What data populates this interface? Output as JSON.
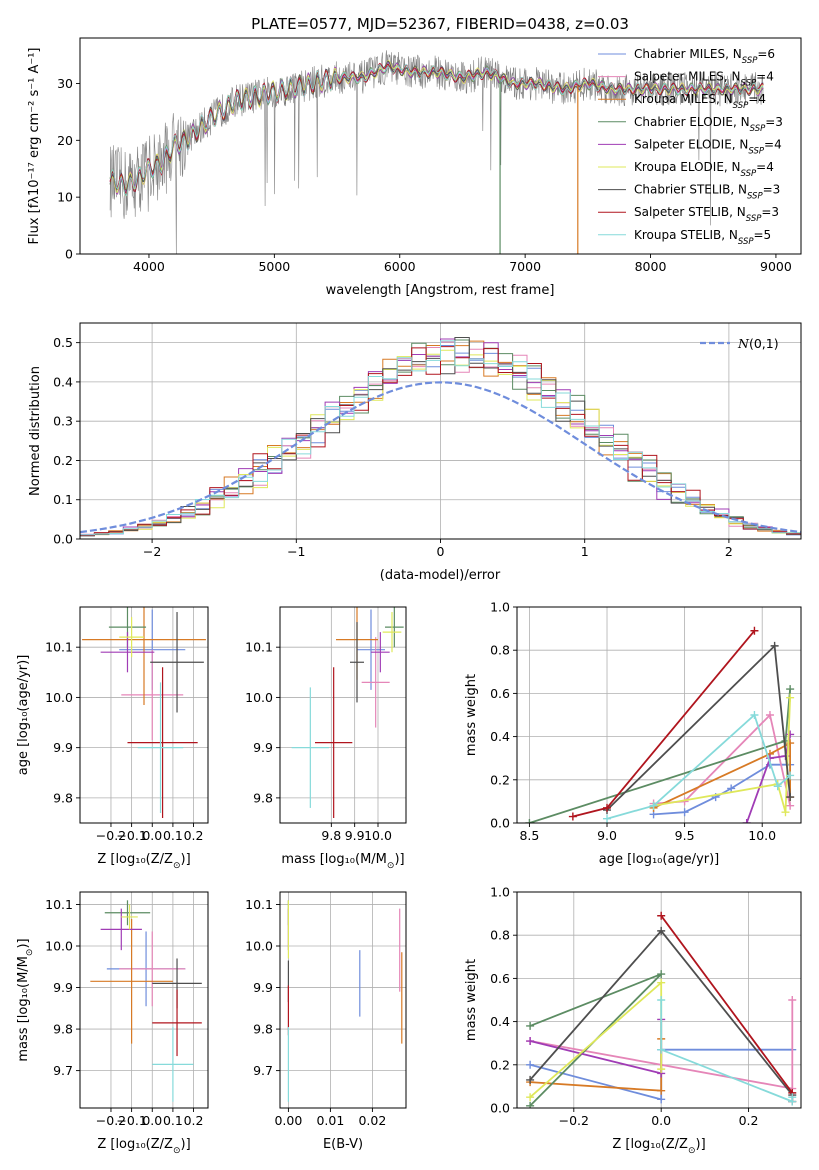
{
  "figure": {
    "title": "PLATE=0577, MJD=52367, FIBERID=0438, z=0.03"
  },
  "colors": [
    "#6f8ddc",
    "#e586b8",
    "#d77a25",
    "#5c8c63",
    "#a03cb5",
    "#dfe85b",
    "#4e4e4e",
    "#b0151e",
    "#86dada"
  ],
  "chart_data": [
    {
      "id": "spectrum",
      "type": "line",
      "title": "PLATE=0577, MJD=52367, FIBERID=0438, z=0.03",
      "xlabel": "wavelength [Angstrom, rest frame]",
      "ylabel": "Flux [f_λ 10^-17 erg cm^-2 s^-1 A^-1]",
      "xlim": [
        3450,
        9200
      ],
      "ylim": [
        0,
        38
      ],
      "xticks": [
        4000,
        5000,
        6000,
        7000,
        8000,
        9000
      ],
      "yticks": [
        0,
        10,
        20,
        30
      ],
      "grid": false,
      "legend_position": "top-right",
      "series": [
        {
          "name": "Chabrier MILES, N_SSP=6"
        },
        {
          "name": "Salpeter MILES, N_SSP=4"
        },
        {
          "name": "Kroupa MILES, N_SSP=4"
        },
        {
          "name": "Chabrier ELODIE, N_SSP=3"
        },
        {
          "name": "Salpeter ELODIE, N_SSP=4"
        },
        {
          "name": "Kroupa ELODIE, N_SSP=4"
        },
        {
          "name": "Chabrier STELIB, N_SSP=3"
        },
        {
          "name": "Salpeter STELIB, N_SSP=3"
        },
        {
          "name": "Kroupa STELIB, N_SSP=5"
        }
      ],
      "continuum": {
        "x": [
          3690,
          3800,
          3900,
          4000,
          4100,
          4200,
          4300,
          4500,
          4700,
          4900,
          5100,
          5300,
          5500,
          5700,
          5900,
          6100,
          6300,
          6500,
          6700,
          6900,
          7100,
          7300,
          7500,
          7700,
          7900,
          8100,
          8300,
          8500,
          8700,
          8900
        ],
        "y": [
          13,
          12,
          13,
          15,
          16,
          19,
          20,
          24,
          27,
          28,
          29,
          30,
          31,
          31,
          33,
          32,
          32,
          31,
          32,
          30,
          30,
          29,
          30,
          29,
          29,
          29,
          29,
          29,
          29,
          29
        ]
      },
      "observed_noise_amplitude": 3.0,
      "dips": [
        {
          "x": 6800,
          "y": 0
        },
        {
          "x": 7420,
          "y": 0
        }
      ]
    },
    {
      "id": "residuals",
      "type": "histogram",
      "xlabel": "(data-model)/error",
      "ylabel": "Normed distribution",
      "xlim": [
        -2.5,
        2.5
      ],
      "ylim": [
        0,
        0.55
      ],
      "xticks": [
        -2,
        -1,
        0,
        1,
        2
      ],
      "yticks": [
        0.0,
        0.1,
        0.2,
        0.3,
        0.4,
        0.5
      ],
      "grid": true,
      "legend_position": "top-right",
      "legend": "N(0,1)",
      "bin_edges": [
        -2.5,
        -2.4,
        -2.3,
        -2.2,
        -2.1,
        -2.0,
        -1.9,
        -1.8,
        -1.7,
        -1.6,
        -1.5,
        -1.4,
        -1.3,
        -1.2,
        -1.1,
        -1.0,
        -0.9,
        -0.8,
        -0.7,
        -0.6,
        -0.5,
        -0.4,
        -0.3,
        -0.2,
        -0.1,
        0.0,
        0.1,
        0.2,
        0.3,
        0.4,
        0.5,
        0.6,
        0.7,
        0.8,
        0.9,
        1.0,
        1.1,
        1.2,
        1.3,
        1.4,
        1.5,
        1.6,
        1.7,
        1.8,
        1.9,
        2.0,
        2.1,
        2.2,
        2.3,
        2.4,
        2.5
      ],
      "reference_counts": [
        0.01,
        0.014,
        0.018,
        0.024,
        0.031,
        0.04,
        0.052,
        0.068,
        0.084,
        0.102,
        0.124,
        0.146,
        0.17,
        0.196,
        0.224,
        0.252,
        0.282,
        0.31,
        0.336,
        0.362,
        0.388,
        0.412,
        0.434,
        0.452,
        0.462,
        0.466,
        0.47,
        0.468,
        0.458,
        0.444,
        0.426,
        0.4,
        0.376,
        0.346,
        0.316,
        0.286,
        0.256,
        0.224,
        0.196,
        0.168,
        0.142,
        0.118,
        0.096,
        0.076,
        0.06,
        0.046,
        0.034,
        0.025,
        0.018,
        0.013
      ]
    },
    {
      "id": "age-vs-Z",
      "type": "errorbar",
      "xlabel": "Z [log10(Z/Z_sun)]",
      "ylabel": "age [log10(age/yr)]",
      "xlim": [
        -0.35,
        0.27
      ],
      "ylim": [
        9.75,
        10.18
      ],
      "xticks": [
        -0.2,
        -0.1,
        0.0,
        0.1,
        0.2
      ],
      "yticks": [
        9.8,
        9.9,
        10.0,
        10.1
      ],
      "grid": true,
      "points": [
        {
          "x": 0.0,
          "xerr": 0.16,
          "y": 10.095,
          "yerr": 0.08
        },
        {
          "x": 0.0,
          "xerr": 0.15,
          "y": 10.005,
          "yerr": 0.09
        },
        {
          "x": -0.04,
          "xerr": 0.3,
          "y": 10.115,
          "yerr": 0.13
        },
        {
          "x": -0.12,
          "xerr": 0.09,
          "y": 10.14,
          "yerr": 0.04
        },
        {
          "x": -0.12,
          "xerr": 0.13,
          "y": 10.09,
          "yerr": 0.04
        },
        {
          "x": -0.1,
          "xerr": 0.06,
          "y": 10.12,
          "yerr": 0.04
        },
        {
          "x": 0.12,
          "xerr": 0.13,
          "y": 10.07,
          "yerr": 0.1
        },
        {
          "x": 0.05,
          "xerr": 0.17,
          "y": 9.91,
          "yerr": 0.15
        },
        {
          "x": 0.04,
          "xerr": 0.11,
          "y": 9.9,
          "yerr": 0.13
        }
      ]
    },
    {
      "id": "age-vs-mass",
      "type": "errorbar",
      "xlabel": "mass [log10(M/M_sun)]",
      "ylabel": "",
      "xlim": [
        9.58,
        10.12
      ],
      "ylim": [
        9.75,
        10.18
      ],
      "xticks": [
        9.8,
        9.9,
        10.0
      ],
      "yticks": [
        9.8,
        9.9,
        10.0,
        10.1
      ],
      "grid": true,
      "points": [
        {
          "x": 9.97,
          "xerr": 0.06,
          "y": 10.095,
          "yerr": 0.08
        },
        {
          "x": 9.99,
          "xerr": 0.06,
          "y": 10.03,
          "yerr": 0.09
        },
        {
          "x": 9.91,
          "xerr": 0.09,
          "y": 10.115,
          "yerr": 0.08
        },
        {
          "x": 10.07,
          "xerr": 0.04,
          "y": 10.14,
          "yerr": 0.04
        },
        {
          "x": 10.01,
          "xerr": 0.04,
          "y": 10.09,
          "yerr": 0.04
        },
        {
          "x": 10.06,
          "xerr": 0.04,
          "y": 10.13,
          "yerr": 0.04
        },
        {
          "x": 9.91,
          "xerr": 0.03,
          "y": 10.07,
          "yerr": 0.08
        },
        {
          "x": 9.81,
          "xerr": 0.08,
          "y": 9.91,
          "yerr": 0.15
        },
        {
          "x": 9.71,
          "xerr": 0.08,
          "y": 9.9,
          "yerr": 0.12
        }
      ]
    },
    {
      "id": "massweight-vs-age",
      "type": "line",
      "xlabel": "age [log10(age/yr)]",
      "ylabel": "mass weight",
      "xlim": [
        8.42,
        10.25
      ],
      "ylim": [
        0,
        1.0
      ],
      "xticks": [
        8.5,
        9.0,
        9.5,
        10.0
      ],
      "yticks": [
        0.0,
        0.2,
        0.4,
        0.6,
        0.8,
        1.0
      ],
      "grid": true,
      "series": [
        {
          "x": [
            9.3,
            9.5,
            9.7,
            9.8,
            10.05,
            10.18
          ],
          "y": [
            0.04,
            0.05,
            0.12,
            0.16,
            0.27,
            0.27
          ]
        },
        {
          "x": [
            9.3,
            9.5,
            10.05,
            10.18
          ],
          "y": [
            0.09,
            0.1,
            0.5,
            0.08
          ]
        },
        {
          "x": [
            9.3,
            10.05,
            10.18,
            10.18
          ],
          "y": [
            0.07,
            0.32,
            0.37,
            0.12
          ]
        },
        {
          "x": [
            8.5,
            10.15,
            10.18
          ],
          "y": [
            0.0,
            0.38,
            0.62
          ]
        },
        {
          "x": [
            9.9,
            10.05,
            10.15,
            10.18
          ],
          "y": [
            0.0,
            0.3,
            0.31,
            0.41
          ]
        },
        {
          "x": [
            9.3,
            10.1,
            10.15,
            10.18
          ],
          "y": [
            0.08,
            0.18,
            0.05,
            0.58
          ]
        },
        {
          "x": [
            9.0,
            10.08,
            10.18
          ],
          "y": [
            0.06,
            0.82,
            0.12
          ]
        },
        {
          "x": [
            8.78,
            9.0,
            9.95
          ],
          "y": [
            0.03,
            0.07,
            0.89
          ]
        },
        {
          "x": [
            9.0,
            9.3,
            9.95,
            10.1,
            10.18
          ],
          "y": [
            0.02,
            0.08,
            0.5,
            0.17,
            0.22
          ]
        }
      ]
    },
    {
      "id": "mass-vs-Z",
      "type": "errorbar",
      "xlabel": "Z [log10(Z/Z_sun)]",
      "ylabel": "mass [log10(M/M_sun)]",
      "xlim": [
        -0.35,
        0.27
      ],
      "ylim": [
        9.61,
        10.13
      ],
      "xticks": [
        -0.2,
        -0.1,
        0.0,
        0.1,
        0.2
      ],
      "yticks": [
        9.7,
        9.8,
        9.9,
        10.0,
        10.1
      ],
      "grid": true,
      "points": [
        {
          "x": -0.03,
          "xerr": 0.19,
          "y": 9.945,
          "yerr": 0.09
        },
        {
          "x": 0.0,
          "xerr": 0.16,
          "y": 9.945,
          "yerr": 0.09
        },
        {
          "x": -0.1,
          "xerr": 0.2,
          "y": 9.915,
          "yerr": 0.15
        },
        {
          "x": -0.12,
          "xerr": 0.11,
          "y": 10.08,
          "yerr": 0.03
        },
        {
          "x": -0.15,
          "xerr": 0.1,
          "y": 10.04,
          "yerr": 0.05
        },
        {
          "x": -0.11,
          "xerr": 0.04,
          "y": 10.07,
          "yerr": 0.03
        },
        {
          "x": 0.12,
          "xerr": 0.12,
          "y": 9.91,
          "yerr": 0.06
        },
        {
          "x": 0.12,
          "xerr": 0.12,
          "y": 9.815,
          "yerr": 0.08
        },
        {
          "x": 0.1,
          "xerr": 0.1,
          "y": 9.715,
          "yerr": 0.09
        }
      ]
    },
    {
      "id": "mass-vs-EBV",
      "type": "errorbar",
      "xlabel": "E(B-V)",
      "ylabel": "",
      "xlim": [
        -0.002,
        0.028
      ],
      "ylim": [
        9.61,
        10.13
      ],
      "xticks": [
        0.0,
        0.01,
        0.02
      ],
      "yticks": [
        9.7,
        9.8,
        9.9,
        10.0,
        10.1
      ],
      "grid": true,
      "points": [
        {
          "x": 0.017,
          "y": 9.91,
          "yerr": 0.08
        },
        {
          "x": 0.0265,
          "y": 9.99,
          "yerr": 0.1
        },
        {
          "x": 0.027,
          "y": 9.875,
          "yerr": 0.11
        },
        {
          "x": 0.0,
          "y": 10.08,
          "yerr": 0.03
        },
        {
          "x": 0.0,
          "y": 10.04,
          "yerr": 0.05
        },
        {
          "x": 0.0,
          "y": 10.04,
          "yerr": 0.07
        },
        {
          "x": 0.0,
          "y": 9.915,
          "yerr": 0.05
        },
        {
          "x": 0.0,
          "y": 9.845,
          "yerr": 0.06
        },
        {
          "x": 0.0,
          "y": 9.715,
          "yerr": 0.09
        }
      ]
    },
    {
      "id": "massweight-vs-Z",
      "type": "line",
      "xlabel": "Z [log10(Z/Z_sun)]",
      "ylabel": "mass weight",
      "xlim": [
        -0.33,
        0.32
      ],
      "ylim": [
        0,
        1.0
      ],
      "xticks": [
        -0.2,
        0.0,
        0.2
      ],
      "yticks": [
        0.0,
        0.2,
        0.4,
        0.6,
        0.8,
        1.0
      ],
      "grid": true,
      "series": [
        {
          "x": [
            -0.3,
            0.0,
            0.0,
            0.3
          ],
          "y": [
            0.2,
            0.04,
            0.27,
            0.27
          ]
        },
        {
          "x": [
            -0.3,
            0.3,
            0.3
          ],
          "y": [
            0.31,
            0.09,
            0.5
          ]
        },
        {
          "x": [
            -0.3,
            0.0,
            0.0
          ],
          "y": [
            0.12,
            0.08,
            0.32
          ]
        },
        {
          "x": [
            -0.3,
            0.0,
            -0.3
          ],
          "y": [
            0.01,
            0.62,
            0.38
          ]
        },
        {
          "x": [
            -0.3,
            0.0,
            0.0
          ],
          "y": [
            0.31,
            0.16,
            0.41
          ]
        },
        {
          "x": [
            -0.3,
            0.0,
            0.0
          ],
          "y": [
            0.05,
            0.58,
            0.18
          ]
        },
        {
          "x": [
            -0.3,
            0.0,
            0.3
          ],
          "y": [
            0.13,
            0.82,
            0.06
          ]
        },
        {
          "x": [
            0.0,
            0.3,
            0.3
          ],
          "y": [
            0.89,
            0.07,
            0.03
          ]
        },
        {
          "x": [
            0.0,
            0.0,
            0.3,
            0.3
          ],
          "y": [
            0.5,
            0.27,
            0.03,
            0.05
          ]
        }
      ]
    }
  ]
}
